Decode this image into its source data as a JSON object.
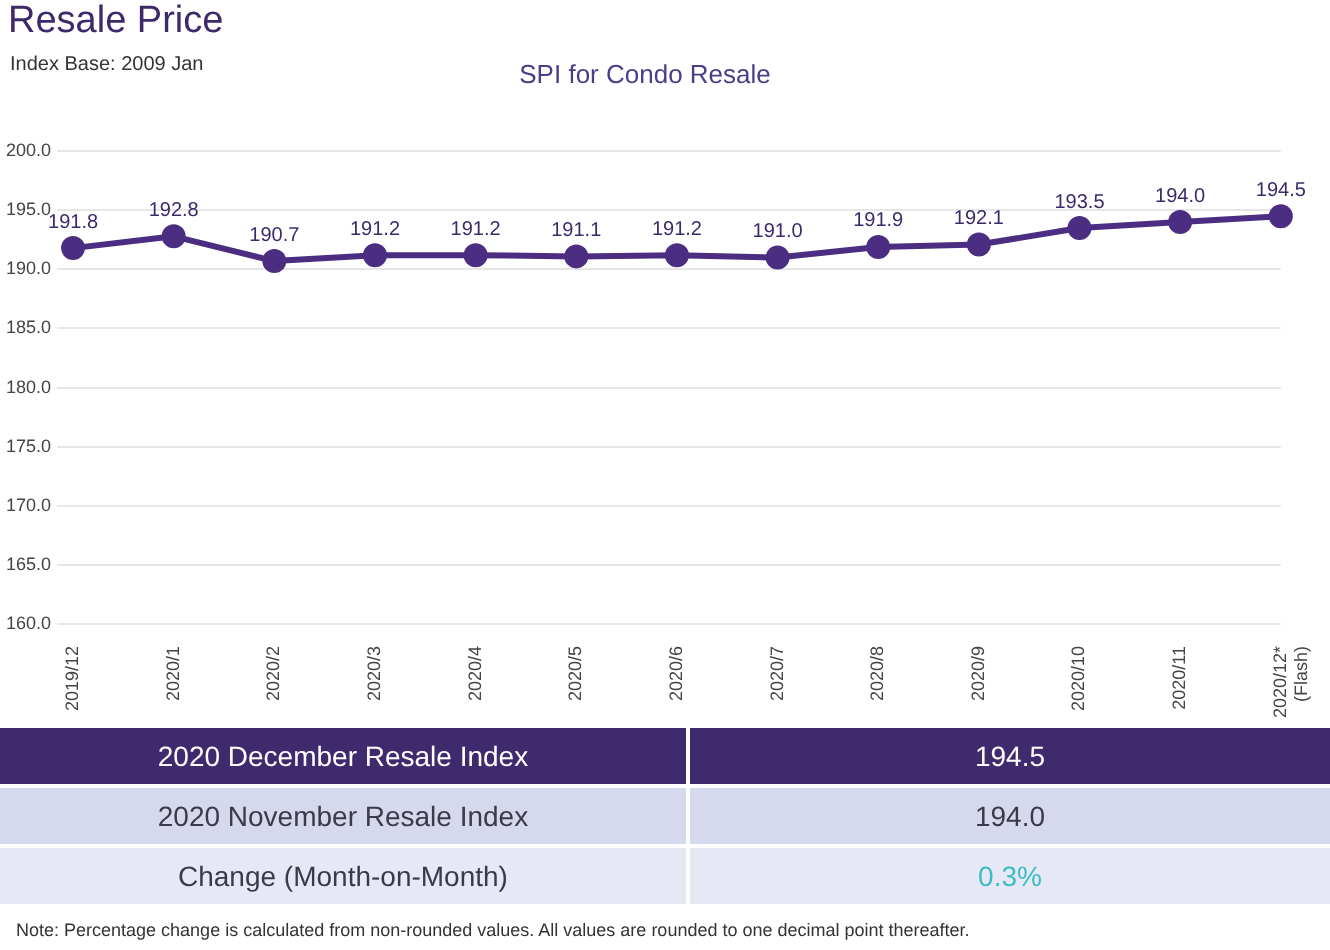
{
  "chart_data": {
    "type": "line",
    "title": "SPI for Condo Resale",
    "subtitle": "Index Base: 2009 Jan",
    "categories": [
      "2019/12",
      "2020/1",
      "2020/2",
      "2020/3",
      "2020/4",
      "2020/5",
      "2020/6",
      "2020/7",
      "2020/8",
      "2020/9",
      "2020/10",
      "2020/11",
      "2020/12*\n(Flash)"
    ],
    "series": [
      {
        "color": "#4b2d82",
        "values": [
          191.8,
          192.8,
          190.7,
          191.2,
          191.2,
          191.1,
          191.2,
          191.0,
          191.9,
          192.1,
          193.5,
          194.0,
          194.5
        ],
        "value_labels": [
          "191.8",
          "192.8",
          "190.7",
          "191.2",
          "191.2",
          "191.1",
          "191.2",
          "191.0",
          "191.9",
          "192.1",
          "193.5",
          "194.0",
          "194.5"
        ]
      }
    ],
    "ylim": [
      160,
      200
    ],
    "yticks": [
      {
        "value": 160,
        "label": "160.0"
      },
      {
        "value": 165,
        "label": "165.0"
      },
      {
        "value": 170,
        "label": "170.0"
      },
      {
        "value": 175,
        "label": "175.0"
      },
      {
        "value": 180,
        "label": "180.0"
      },
      {
        "value": 185,
        "label": "185.0"
      },
      {
        "value": 190,
        "label": "190.0"
      },
      {
        "value": 195,
        "label": "195.0"
      },
      {
        "value": 200,
        "label": "200.0"
      }
    ],
    "grid": "y",
    "marker": "circle",
    "line_style": "solid",
    "legend": false,
    "annotations": [
      "Resale Price",
      "2020 December Resale Index",
      "194.5",
      "2020 November Resale Index",
      "194.0",
      "Change (Month-on-Month)",
      "0.3%",
      "Note: Percentage change is calculated from non-rounded values.  All values are rounded to one decimal point thereafter."
    ]
  }
}
